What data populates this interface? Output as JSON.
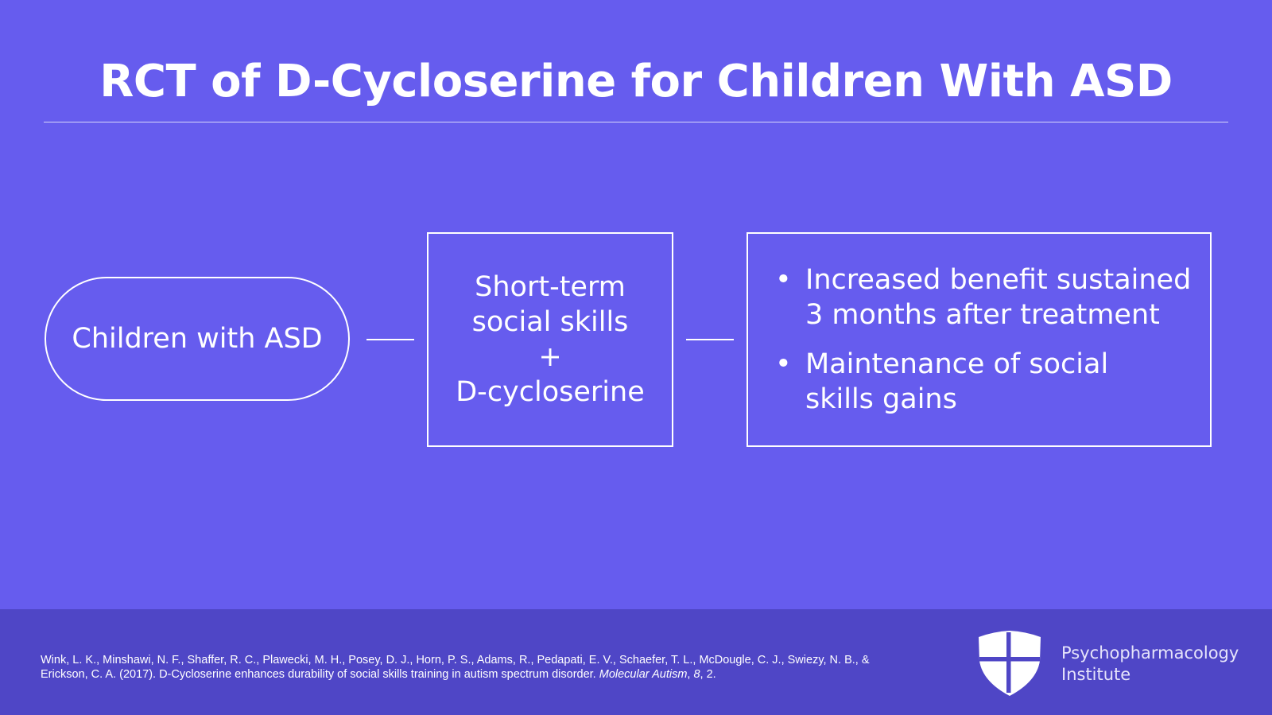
{
  "title": "RCT of D-Cycloserine for Children With ASD",
  "diagram": {
    "pill_label": "Children with ASD",
    "middle_box": {
      "line1": "Short-term",
      "line2": "social skills",
      "line3": "+",
      "line4": "D-cycloserine"
    },
    "right_box": {
      "bullets": [
        {
          "line1": "Increased benefit sustained",
          "line2": "3 months after treatment"
        },
        {
          "line1": "Maintenance of social",
          "line2": "skills gains"
        }
      ],
      "bullet_glyph": "•"
    }
  },
  "footer": {
    "citation_part1": "Wink, L. K., Minshawi, N. F., Shaffer, R. C., Plawecki, M. H., Posey, D. J., Horn, P. S., Adams, R., Pedapati, E. V., Schaefer, T. L., McDougle, C. J., Swiezy, N. B., & Erickson, C. A. (2017). D-Cycloserine enhances durability of social skills training in autism spectrum disorder. ",
    "citation_journal": "Molecular Autism",
    "citation_sep1": ", ",
    "citation_volume": "8",
    "citation_end": ", 2.",
    "logo": {
      "icon": "shield-cross-icon",
      "line1": "Psychopharmacology",
      "line2": "Institute"
    }
  },
  "colors": {
    "background": "#665CEE",
    "footer": "#4F46C6",
    "foreground": "#FFFFFF"
  }
}
